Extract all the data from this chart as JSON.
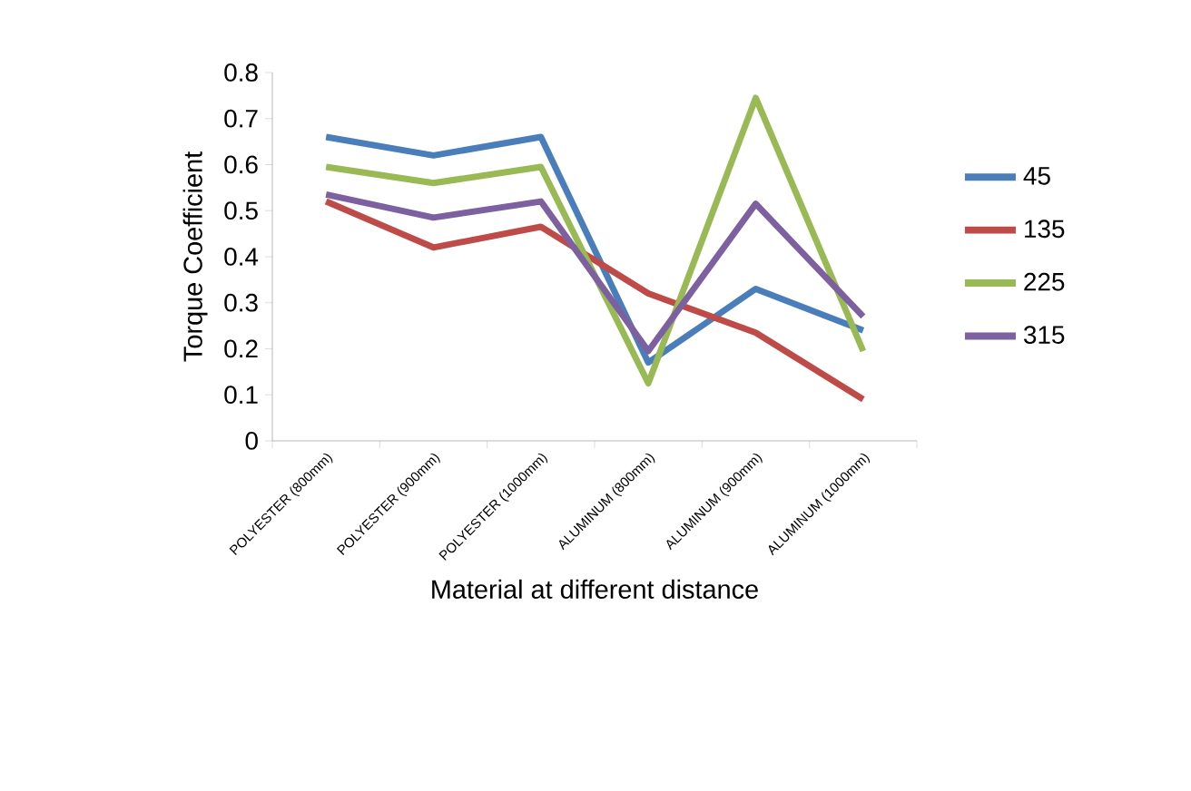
{
  "chart_data": {
    "type": "line",
    "xlabel": "Material at different distance",
    "ylabel": "Torque Coefficient",
    "categories": [
      "POLYESTER (800mm)",
      "POLYESTER (900mm)",
      "POLYESTER (1000mm)",
      "ALUMINUM (800mm)",
      "ALUMINUM (900mm)",
      "ALUMINUM (1000mm)"
    ],
    "series": [
      {
        "name": "45",
        "color": "#4a7ebb",
        "values": [
          0.66,
          0.62,
          0.66,
          0.17,
          0.33,
          0.24
        ]
      },
      {
        "name": "135",
        "color": "#be4b48",
        "values": [
          0.52,
          0.42,
          0.465,
          0.32,
          0.235,
          0.09
        ]
      },
      {
        "name": "225",
        "color": "#98b954",
        "values": [
          0.595,
          0.56,
          0.595,
          0.125,
          0.745,
          0.195
        ]
      },
      {
        "name": "315",
        "color": "#7d60a0",
        "values": [
          0.535,
          0.485,
          0.52,
          0.195,
          0.515,
          0.27
        ]
      }
    ],
    "ylim": [
      0,
      0.8
    ],
    "yticks": [
      0,
      0.1,
      0.2,
      0.3,
      0.4,
      0.5,
      0.6,
      0.7,
      0.8
    ],
    "legend": "right",
    "grid": false,
    "marker": "none",
    "line_style": "solid"
  }
}
